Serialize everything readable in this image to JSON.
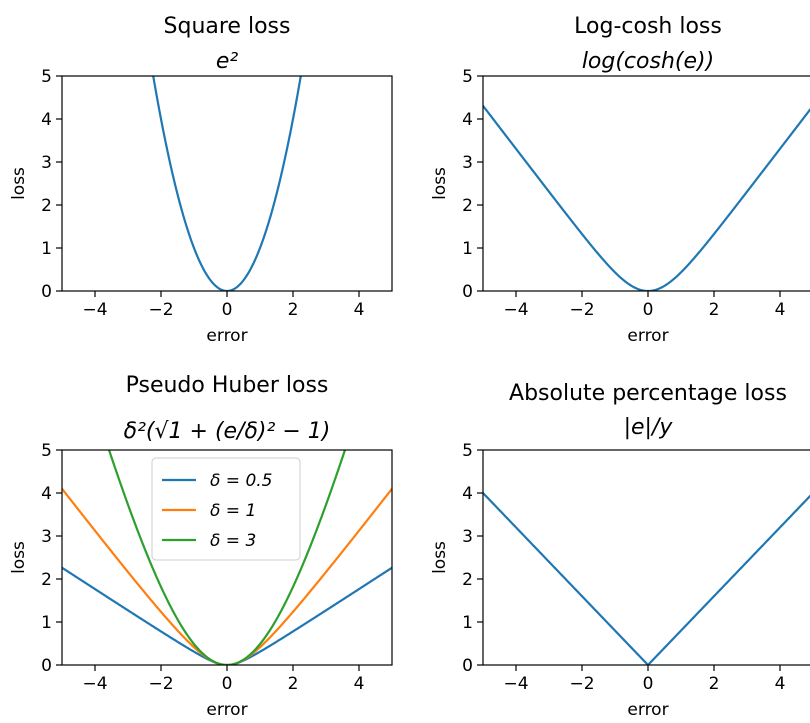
{
  "chart_data": [
    {
      "type": "line",
      "title": "Square loss",
      "subtitle": "e²",
      "xlabel": "error",
      "ylabel": "loss",
      "xlim": [
        -5,
        5
      ],
      "ylim": [
        0,
        5
      ],
      "xticks": [
        -4,
        -2,
        0,
        2,
        4
      ],
      "yticks": [
        0,
        1,
        2,
        3,
        4,
        5
      ],
      "grid": false,
      "formula": "square",
      "series": [
        {
          "color": "#1f77b4",
          "x": [
            -2.236,
            -1.5,
            -1,
            -0.5,
            0,
            0.5,
            1,
            1.5,
            2.236
          ],
          "y": [
            5,
            2.25,
            1,
            0.25,
            0,
            0.25,
            1,
            2.25,
            5
          ]
        }
      ]
    },
    {
      "type": "line",
      "title": "Log-cosh loss",
      "subtitle": "log(cosh(e))",
      "xlabel": "error",
      "ylabel": "loss",
      "xlim": [
        -5,
        5
      ],
      "ylim": [
        0,
        5
      ],
      "xticks": [
        -4,
        -2,
        0,
        2,
        4
      ],
      "yticks": [
        0,
        1,
        2,
        3,
        4,
        5
      ],
      "grid": false,
      "formula": "logcosh",
      "series": [
        {
          "color": "#1f77b4",
          "x": [
            -5,
            -4,
            -3,
            -2,
            -1,
            0,
            1,
            2,
            3,
            4,
            5
          ],
          "y": [
            4.31,
            3.31,
            2.31,
            1.33,
            0.43,
            0,
            0.43,
            1.33,
            2.31,
            3.31,
            4.31
          ]
        }
      ]
    },
    {
      "type": "line",
      "title": "Pseudo Huber loss",
      "subtitle": "δ²(√1 + (e/δ)² − 1)",
      "xlabel": "error",
      "ylabel": "loss",
      "xlim": [
        -5,
        5
      ],
      "ylim": [
        0,
        5
      ],
      "xticks": [
        -4,
        -2,
        0,
        2,
        4
      ],
      "yticks": [
        0,
        1,
        2,
        3,
        4,
        5
      ],
      "grid": false,
      "legend": "upper-center",
      "formula": "pseudohuber",
      "series": [
        {
          "name": "δ = 0.5",
          "delta": 0.5,
          "color": "#1f77b4",
          "x": [
            -5,
            -2.5,
            0,
            2.5,
            5
          ],
          "y": [
            2.26,
            1.02,
            0,
            1.02,
            2.26
          ]
        },
        {
          "name": "δ = 1",
          "delta": 1,
          "color": "#ff7f0e",
          "x": [
            -5,
            -2.5,
            0,
            2.5,
            5
          ],
          "y": [
            4.1,
            1.69,
            0,
            1.69,
            4.1
          ]
        },
        {
          "name": "δ = 3",
          "delta": 3,
          "color": "#2ca02c",
          "x": [
            -3.97,
            -2,
            0,
            2,
            3.97
          ],
          "y": [
            5,
            1.82,
            0,
            1.82,
            5
          ]
        }
      ]
    },
    {
      "type": "line",
      "title": "Absolute percentage loss",
      "subtitle": "|e|/y",
      "xlabel": "error",
      "ylabel": "loss",
      "xlim": [
        -5,
        5
      ],
      "ylim": [
        0,
        5
      ],
      "xticks": [
        -4,
        -2,
        0,
        2,
        4
      ],
      "yticks": [
        0,
        1,
        2,
        3,
        4,
        5
      ],
      "grid": false,
      "formula": "absolute",
      "series": [
        {
          "color": "#1f77b4",
          "x": [
            -5,
            0,
            5
          ],
          "y": [
            4,
            0,
            4
          ]
        }
      ]
    }
  ]
}
